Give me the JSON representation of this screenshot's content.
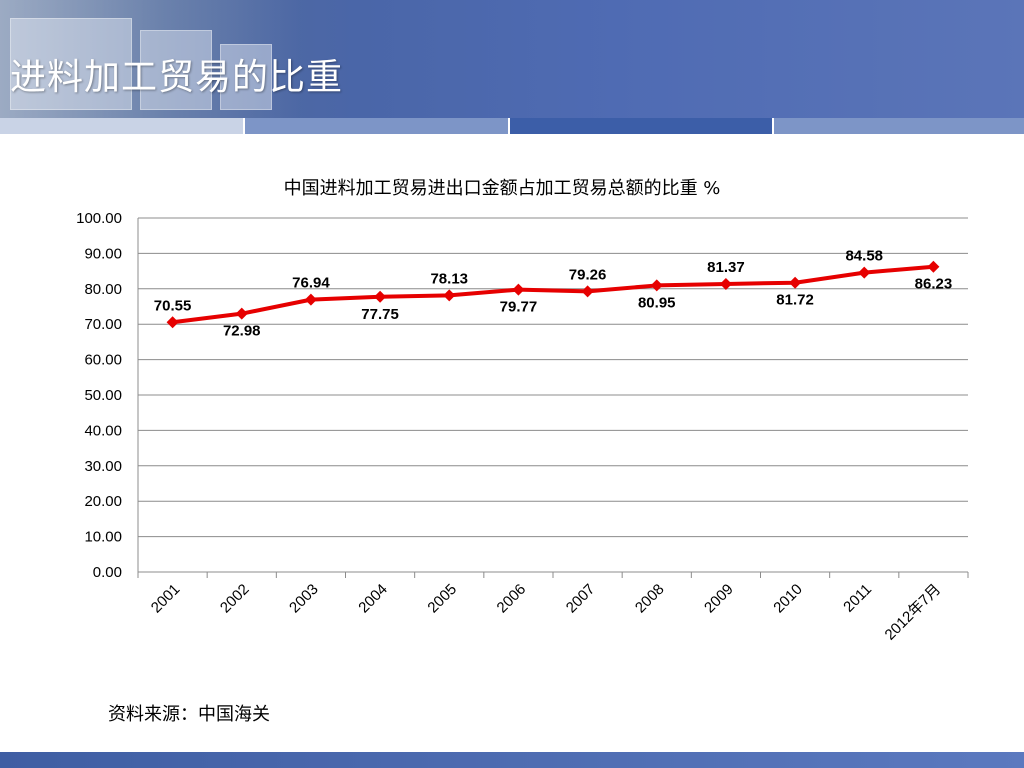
{
  "header": {
    "title": "进料加工贸易的比重"
  },
  "chart_data": {
    "type": "line",
    "title": "中国进料加工贸易进出口金额占加工贸易总额的比重  %",
    "xlabel": "",
    "ylabel": "",
    "categories": [
      "2001",
      "2002",
      "2003",
      "2004",
      "2005",
      "2006",
      "2007",
      "2008",
      "2009",
      "2010",
      "2011",
      "2012年7月"
    ],
    "series": [
      {
        "values": [
          70.55,
          72.98,
          76.94,
          77.75,
          78.13,
          79.77,
          79.26,
          80.95,
          81.37,
          81.72,
          84.58,
          86.23
        ],
        "color": "#e60000"
      }
    ],
    "data_labels": [
      "70.55",
      "72.98",
      "76.94",
      "77.75",
      "78.13",
      "79.77",
      "79.26",
      "80.95",
      "81.37",
      "81.72",
      "84.58",
      "86.23"
    ],
    "label_positions": [
      "above",
      "below",
      "above",
      "below",
      "above",
      "below",
      "above",
      "below",
      "above",
      "below",
      "above",
      "below"
    ],
    "ylim": [
      0,
      100
    ],
    "yticks": [
      "0.00",
      "10.00",
      "20.00",
      "30.00",
      "40.00",
      "50.00",
      "60.00",
      "70.00",
      "80.00",
      "90.00",
      "100.00"
    ],
    "grid": true,
    "legend": "none"
  },
  "source": "资料来源：中国海关"
}
